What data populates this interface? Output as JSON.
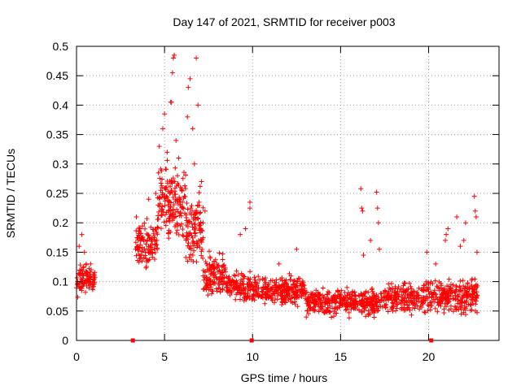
{
  "chart_data": {
    "type": "scatter",
    "title": "Day 147 of 2021, SRMTID for receiver p003",
    "xlabel": "GPS time / hours",
    "ylabel": "SRMTID / TECUs",
    "xlim": [
      0,
      24
    ],
    "ylim": [
      0,
      0.5
    ],
    "grid": true,
    "marker": "+",
    "color": "#ff0000",
    "x_ticks": [
      0,
      5,
      10,
      15,
      20
    ],
    "x_tick_labels": [
      "0",
      "5",
      "10",
      "15",
      "20"
    ],
    "y_ticks": [
      0,
      0.05,
      0.1,
      0.15,
      0.2,
      0.25,
      0.3,
      0.35,
      0.4,
      0.45,
      0.5
    ],
    "y_tick_labels": [
      "0",
      "0.05",
      "0.1",
      "0.15",
      "0.2",
      "0.25",
      "0.3",
      "0.35",
      "0.4",
      "0.45",
      "0.5"
    ],
    "zero_markers_x": [
      3.2,
      9.95,
      20.15
    ],
    "series": [
      {
        "name": "SRMTID",
        "x_start": 0.0,
        "x_end": 1.05,
        "y_center": 0.105,
        "y_spread": 0.035,
        "count": 90
      },
      {
        "name": "SRMTID",
        "x_start": 3.35,
        "x_end": 4.6,
        "y_center": 0.165,
        "y_spread": 0.05,
        "count": 110
      },
      {
        "name": "SRMTID",
        "x_start": 4.6,
        "x_end": 6.2,
        "y_center": 0.235,
        "y_spread": 0.09,
        "count": 160
      },
      {
        "name": "SRMTID",
        "x_start": 6.2,
        "x_end": 7.2,
        "y_center": 0.19,
        "y_spread": 0.09,
        "count": 110
      },
      {
        "name": "SRMTID",
        "x_start": 7.2,
        "x_end": 8.5,
        "y_center": 0.11,
        "y_spread": 0.05,
        "count": 120
      },
      {
        "name": "SRMTID",
        "x_start": 8.5,
        "x_end": 10.0,
        "y_center": 0.09,
        "y_spread": 0.035,
        "count": 120
      },
      {
        "name": "SRMTID",
        "x_start": 10.0,
        "x_end": 13.0,
        "y_center": 0.085,
        "y_spread": 0.035,
        "count": 260
      },
      {
        "name": "SRMTID",
        "x_start": 13.0,
        "x_end": 17.5,
        "y_center": 0.065,
        "y_spread": 0.03,
        "count": 380
      },
      {
        "name": "SRMTID",
        "x_start": 17.5,
        "x_end": 21.0,
        "y_center": 0.075,
        "y_spread": 0.035,
        "count": 300
      },
      {
        "name": "SRMTID",
        "x_start": 21.0,
        "x_end": 22.8,
        "y_center": 0.075,
        "y_spread": 0.04,
        "count": 160
      }
    ],
    "points": [
      [
        0.15,
        0.16
      ],
      [
        0.3,
        0.18
      ],
      [
        0.45,
        0.15
      ],
      [
        0.8,
        0.13
      ],
      [
        3.4,
        0.21
      ],
      [
        3.6,
        0.19
      ],
      [
        4.1,
        0.24
      ],
      [
        4.5,
        0.25
      ],
      [
        4.7,
        0.33
      ],
      [
        4.9,
        0.36
      ],
      [
        5.0,
        0.385
      ],
      [
        5.15,
        0.32
      ],
      [
        5.35,
        0.405
      ],
      [
        5.4,
        0.405
      ],
      [
        5.45,
        0.455
      ],
      [
        5.5,
        0.48
      ],
      [
        5.55,
        0.485
      ],
      [
        5.65,
        0.34
      ],
      [
        5.8,
        0.31
      ],
      [
        6.3,
        0.38
      ],
      [
        6.35,
        0.43
      ],
      [
        6.45,
        0.445
      ],
      [
        6.6,
        0.36
      ],
      [
        6.7,
        0.3
      ],
      [
        6.8,
        0.48
      ],
      [
        6.9,
        0.4
      ],
      [
        7.1,
        0.27
      ],
      [
        7.3,
        0.22
      ],
      [
        9.3,
        0.18
      ],
      [
        9.6,
        0.19
      ],
      [
        9.85,
        0.235
      ],
      [
        9.85,
        0.225
      ],
      [
        11.5,
        0.13
      ],
      [
        12.5,
        0.155
      ],
      [
        16.15,
        0.258
      ],
      [
        16.2,
        0.225
      ],
      [
        16.25,
        0.22
      ],
      [
        16.3,
        0.145
      ],
      [
        16.7,
        0.17
      ],
      [
        17.05,
        0.252
      ],
      [
        17.1,
        0.225
      ],
      [
        17.15,
        0.2
      ],
      [
        17.2,
        0.155
      ],
      [
        19.9,
        0.15
      ],
      [
        20.4,
        0.13
      ],
      [
        20.95,
        0.17
      ],
      [
        21.0,
        0.18
      ],
      [
        21.1,
        0.19
      ],
      [
        21.6,
        0.21
      ],
      [
        21.8,
        0.16
      ],
      [
        22.0,
        0.17
      ],
      [
        22.1,
        0.2
      ],
      [
        22.6,
        0.245
      ],
      [
        22.65,
        0.22
      ],
      [
        22.7,
        0.21
      ],
      [
        22.75,
        0.15
      ]
    ]
  }
}
